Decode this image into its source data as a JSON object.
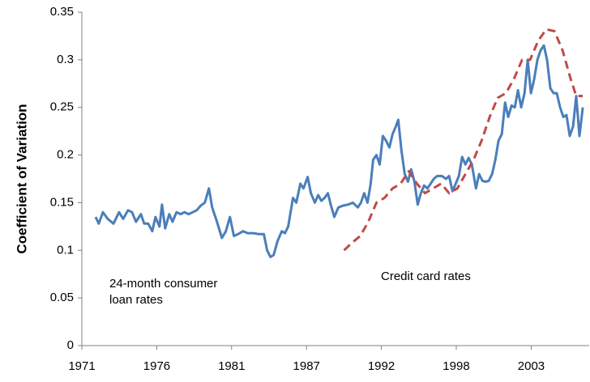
{
  "chart_data": {
    "type": "line",
    "y_label": "Coefficient of Variation",
    "annotations": [
      "24-month consumer",
      "loan rates",
      "Credit  card rates"
    ],
    "xlim": [
      1971,
      2008.1
    ],
    "xticks": [
      {
        "value": 1971,
        "label": "1971"
      },
      {
        "value": 1976.48,
        "label": "1976"
      },
      {
        "value": 1981.95,
        "label": "1981"
      },
      {
        "value": 1987.43,
        "label": "1987"
      },
      {
        "value": 1992.9,
        "label": "1992"
      },
      {
        "value": 1998.38,
        "label": "1998"
      },
      {
        "value": 2003.86,
        "label": "2003"
      }
    ],
    "ylim": [
      0,
      0.35
    ],
    "yticks": [
      0,
      0.05,
      0.1,
      0.15,
      0.2,
      0.25,
      0.3,
      0.35
    ],
    "series": [
      {
        "name": "24-month consumer loan rates",
        "color": "#4a7ebb",
        "dashed": false,
        "x": [
          1972.01,
          1972.24,
          1972.54,
          1972.89,
          1973.31,
          1973.72,
          1974.02,
          1974.37,
          1974.67,
          1974.96,
          1975.32,
          1975.56,
          1975.85,
          1976.15,
          1976.38,
          1976.68,
          1976.86,
          1977.09,
          1977.39,
          1977.63,
          1977.92,
          1978.22,
          1978.51,
          1978.81,
          1979.11,
          1979.4,
          1979.7,
          1979.99,
          1980.29,
          1980.53,
          1980.88,
          1981.24,
          1981.53,
          1981.83,
          1982.12,
          1982.42,
          1982.78,
          1983.13,
          1983.54,
          1983.96,
          1984.31,
          1984.55,
          1984.79,
          1985.02,
          1985.32,
          1985.62,
          1985.85,
          1986.09,
          1986.44,
          1986.68,
          1986.98,
          1987.21,
          1987.51,
          1987.75,
          1988.04,
          1988.28,
          1988.51,
          1988.75,
          1988.99,
          1989.22,
          1989.46,
          1989.76,
          1990.11,
          1990.47,
          1990.82,
          1991.18,
          1991.41,
          1991.65,
          1991.89,
          1992.12,
          1992.3,
          1992.54,
          1992.78,
          1993.01,
          1993.25,
          1993.49,
          1993.72,
          1993.96,
          1994.14,
          1994.37,
          1994.61,
          1994.85,
          1995.08,
          1995.32,
          1995.56,
          1995.79,
          1996.03,
          1996.27,
          1996.5,
          1996.74,
          1996.98,
          1997.33,
          1997.63,
          1997.86,
          1998.1,
          1998.34,
          1998.57,
          1998.81,
          1999.05,
          1999.28,
          1999.52,
          1999.82,
          2000.05,
          2000.29,
          2000.53,
          2000.76,
          2001.0,
          2001.24,
          2001.47,
          2001.71,
          2001.95,
          2002.18,
          2002.42,
          2002.66,
          2002.89,
          2003.13,
          2003.37,
          2003.6,
          2003.84,
          2004.08,
          2004.31,
          2004.55,
          2004.79,
          2005.02,
          2005.26,
          2005.5,
          2005.73,
          2005.97,
          2006.21,
          2006.44,
          2006.68,
          2006.92,
          2007.15,
          2007.39,
          2007.63
        ],
        "values": [
          0.135,
          0.128,
          0.14,
          0.133,
          0.128,
          0.14,
          0.133,
          0.142,
          0.14,
          0.13,
          0.138,
          0.128,
          0.128,
          0.12,
          0.135,
          0.125,
          0.148,
          0.123,
          0.138,
          0.13,
          0.14,
          0.138,
          0.14,
          0.138,
          0.14,
          0.142,
          0.147,
          0.15,
          0.165,
          0.145,
          0.13,
          0.113,
          0.12,
          0.135,
          0.115,
          0.117,
          0.12,
          0.118,
          0.118,
          0.117,
          0.117,
          0.1,
          0.093,
          0.095,
          0.11,
          0.12,
          0.118,
          0.125,
          0.155,
          0.15,
          0.17,
          0.165,
          0.177,
          0.16,
          0.15,
          0.158,
          0.152,
          0.155,
          0.16,
          0.147,
          0.135,
          0.145,
          0.147,
          0.148,
          0.15,
          0.145,
          0.15,
          0.16,
          0.15,
          0.17,
          0.195,
          0.2,
          0.19,
          0.22,
          0.215,
          0.208,
          0.222,
          0.23,
          0.237,
          0.205,
          0.18,
          0.172,
          0.185,
          0.172,
          0.148,
          0.16,
          0.168,
          0.165,
          0.17,
          0.175,
          0.178,
          0.178,
          0.175,
          0.178,
          0.162,
          0.17,
          0.178,
          0.198,
          0.19,
          0.197,
          0.19,
          0.165,
          0.18,
          0.173,
          0.172,
          0.173,
          0.18,
          0.195,
          0.215,
          0.222,
          0.255,
          0.24,
          0.252,
          0.25,
          0.268,
          0.25,
          0.265,
          0.3,
          0.265,
          0.28,
          0.3,
          0.31,
          0.315,
          0.3,
          0.27,
          0.265,
          0.265,
          0.25,
          0.24,
          0.242,
          0.22,
          0.23,
          0.262,
          0.22,
          0.25
        ]
      },
      {
        "name": "Credit  card rates",
        "color": "#be4b48",
        "dashed": true,
        "x": [
          1990.17,
          1990.76,
          1991.36,
          1991.95,
          1992.54,
          1993.13,
          1993.72,
          1994.31,
          1994.91,
          1995.5,
          1996.09,
          1996.68,
          1997.27,
          1997.86,
          1998.46,
          1999.05,
          1999.64,
          2000.23,
          2000.82,
          2001.41,
          2002.01,
          2002.6,
          2003.19,
          2003.78,
          2004.37,
          2004.96,
          2005.56,
          2006.15,
          2006.74,
          2007.15,
          2007.63
        ],
        "values": [
          0.1,
          0.108,
          0.115,
          0.13,
          0.15,
          0.155,
          0.165,
          0.17,
          0.183,
          0.17,
          0.16,
          0.165,
          0.17,
          0.16,
          0.165,
          0.18,
          0.195,
          0.215,
          0.24,
          0.26,
          0.265,
          0.28,
          0.3,
          0.3,
          0.32,
          0.332,
          0.33,
          0.31,
          0.28,
          0.262,
          0.262
        ]
      }
    ]
  }
}
